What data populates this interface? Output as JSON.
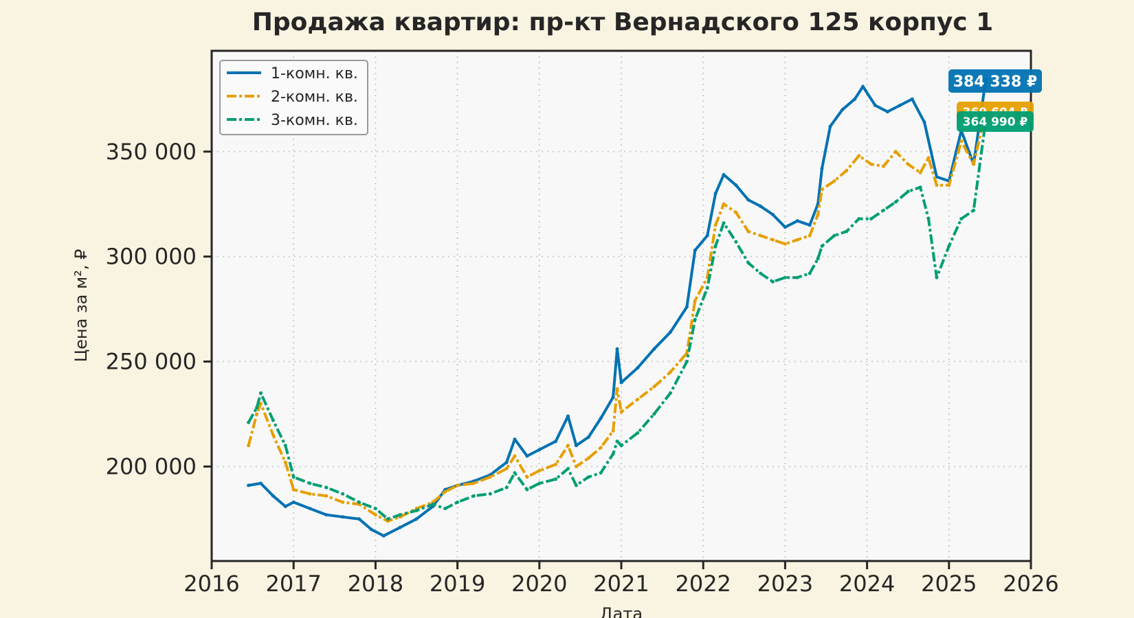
{
  "colors": {
    "page_background": "#f9f3e1",
    "plot_background": "#f8f8f8",
    "one_room": "#0072b2",
    "two_room": "#e69f00",
    "three_room": "#009e73",
    "grid": "#cccccc",
    "axis": "#262626"
  },
  "chart_data": {
    "type": "line",
    "title": "Продажа квартир: пр-кт Вернадского 125 корпус 1",
    "xlabel": "Дата",
    "ylabel": "Цена за м², ₽",
    "xlim": [
      2016,
      2026
    ],
    "ylim": [
      155000,
      398000
    ],
    "x_ticks": [
      2016,
      2017,
      2018,
      2019,
      2020,
      2021,
      2022,
      2023,
      2024,
      2025,
      2026
    ],
    "x_tick_labels": [
      "2016",
      "2017",
      "2018",
      "2019",
      "2020",
      "2021",
      "2022",
      "2023",
      "2024",
      "2025",
      "2026"
    ],
    "y_ticks": [
      200000,
      250000,
      300000,
      350000
    ],
    "y_tick_labels": [
      "200 000",
      "250 000",
      "300 000",
      "350 000"
    ],
    "grid": true,
    "legend_position": "top-left",
    "series": [
      {
        "name": "1-комн. кв.",
        "color": "#0072b2",
        "linestyle": "solid",
        "last_value_label": "384 338 ₽",
        "points": [
          [
            2016.45,
            191000
          ],
          [
            2016.6,
            192000
          ],
          [
            2016.75,
            186000
          ],
          [
            2016.9,
            181000
          ],
          [
            2017.0,
            183000
          ],
          [
            2017.2,
            180000
          ],
          [
            2017.4,
            177000
          ],
          [
            2017.6,
            176000
          ],
          [
            2017.8,
            175000
          ],
          [
            2017.95,
            170000
          ],
          [
            2018.1,
            167000
          ],
          [
            2018.3,
            171000
          ],
          [
            2018.5,
            175000
          ],
          [
            2018.7,
            181000
          ],
          [
            2018.85,
            189000
          ],
          [
            2019.0,
            191000
          ],
          [
            2019.2,
            193000
          ],
          [
            2019.4,
            196000
          ],
          [
            2019.6,
            202000
          ],
          [
            2019.7,
            213000
          ],
          [
            2019.85,
            205000
          ],
          [
            2020.0,
            208000
          ],
          [
            2020.2,
            212000
          ],
          [
            2020.35,
            224000
          ],
          [
            2020.45,
            210000
          ],
          [
            2020.6,
            214000
          ],
          [
            2020.75,
            223000
          ],
          [
            2020.9,
            233000
          ],
          [
            2020.95,
            256000
          ],
          [
            2021.0,
            240000
          ],
          [
            2021.2,
            247000
          ],
          [
            2021.4,
            256000
          ],
          [
            2021.6,
            264000
          ],
          [
            2021.8,
            276000
          ],
          [
            2021.9,
            303000
          ],
          [
            2022.05,
            310000
          ],
          [
            2022.15,
            330000
          ],
          [
            2022.25,
            339000
          ],
          [
            2022.4,
            334000
          ],
          [
            2022.55,
            327000
          ],
          [
            2022.7,
            324000
          ],
          [
            2022.85,
            320000
          ],
          [
            2023.0,
            314000
          ],
          [
            2023.15,
            317000
          ],
          [
            2023.3,
            315000
          ],
          [
            2023.4,
            325000
          ],
          [
            2023.45,
            342000
          ],
          [
            2023.55,
            362000
          ],
          [
            2023.7,
            370000
          ],
          [
            2023.85,
            375000
          ],
          [
            2023.95,
            381000
          ],
          [
            2024.1,
            372000
          ],
          [
            2024.25,
            369000
          ],
          [
            2024.4,
            372000
          ],
          [
            2024.55,
            375000
          ],
          [
            2024.7,
            364000
          ],
          [
            2024.85,
            338000
          ],
          [
            2025.0,
            336000
          ],
          [
            2025.15,
            360000
          ],
          [
            2025.3,
            344000
          ],
          [
            2025.45,
            384338
          ]
        ]
      },
      {
        "name": "2-комн. кв.",
        "color": "#e69f00",
        "linestyle": "dashdot",
        "last_value_label": "369 604 ₽",
        "points": [
          [
            2016.45,
            210000
          ],
          [
            2016.55,
            225000
          ],
          [
            2016.6,
            230000
          ],
          [
            2016.75,
            215000
          ],
          [
            2016.9,
            202000
          ],
          [
            2017.0,
            189000
          ],
          [
            2017.2,
            187000
          ],
          [
            2017.4,
            186000
          ],
          [
            2017.6,
            183000
          ],
          [
            2017.8,
            182000
          ],
          [
            2018.0,
            177000
          ],
          [
            2018.15,
            174000
          ],
          [
            2018.3,
            176000
          ],
          [
            2018.5,
            180000
          ],
          [
            2018.7,
            183000
          ],
          [
            2018.85,
            188000
          ],
          [
            2019.0,
            191000
          ],
          [
            2019.2,
            192000
          ],
          [
            2019.4,
            195000
          ],
          [
            2019.6,
            199000
          ],
          [
            2019.7,
            205000
          ],
          [
            2019.85,
            195000
          ],
          [
            2020.0,
            198000
          ],
          [
            2020.2,
            201000
          ],
          [
            2020.35,
            210000
          ],
          [
            2020.45,
            200000
          ],
          [
            2020.6,
            204000
          ],
          [
            2020.75,
            209000
          ],
          [
            2020.9,
            217000
          ],
          [
            2020.95,
            237000
          ],
          [
            2021.0,
            226000
          ],
          [
            2021.2,
            232000
          ],
          [
            2021.4,
            238000
          ],
          [
            2021.6,
            245000
          ],
          [
            2021.8,
            254000
          ],
          [
            2021.9,
            279000
          ],
          [
            2022.05,
            290000
          ],
          [
            2022.15,
            315000
          ],
          [
            2022.25,
            325000
          ],
          [
            2022.4,
            321000
          ],
          [
            2022.55,
            312000
          ],
          [
            2022.7,
            310000
          ],
          [
            2022.85,
            308000
          ],
          [
            2023.0,
            306000
          ],
          [
            2023.15,
            308000
          ],
          [
            2023.3,
            310000
          ],
          [
            2023.4,
            320000
          ],
          [
            2023.45,
            332000
          ],
          [
            2023.6,
            336000
          ],
          [
            2023.75,
            341000
          ],
          [
            2023.9,
            348000
          ],
          [
            2024.05,
            344000
          ],
          [
            2024.2,
            343000
          ],
          [
            2024.35,
            350000
          ],
          [
            2024.5,
            344000
          ],
          [
            2024.65,
            340000
          ],
          [
            2024.75,
            347000
          ],
          [
            2024.85,
            334000
          ],
          [
            2025.0,
            334000
          ],
          [
            2025.15,
            355000
          ],
          [
            2025.3,
            344000
          ],
          [
            2025.45,
            369604
          ]
        ]
      },
      {
        "name": "3-комн. кв.",
        "color": "#009e73",
        "linestyle": "dashdot",
        "last_value_label": "364 990 ₽",
        "points": [
          [
            2016.45,
            221000
          ],
          [
            2016.55,
            228000
          ],
          [
            2016.6,
            235000
          ],
          [
            2016.75,
            222000
          ],
          [
            2016.9,
            210000
          ],
          [
            2017.0,
            195000
          ],
          [
            2017.2,
            192000
          ],
          [
            2017.4,
            190000
          ],
          [
            2017.6,
            187000
          ],
          [
            2017.8,
            183000
          ],
          [
            2018.0,
            180000
          ],
          [
            2018.15,
            175000
          ],
          [
            2018.3,
            177000
          ],
          [
            2018.5,
            179000
          ],
          [
            2018.7,
            182000
          ],
          [
            2018.85,
            180000
          ],
          [
            2019.0,
            183000
          ],
          [
            2019.2,
            186000
          ],
          [
            2019.4,
            187000
          ],
          [
            2019.6,
            190000
          ],
          [
            2019.7,
            197000
          ],
          [
            2019.85,
            189000
          ],
          [
            2020.0,
            192000
          ],
          [
            2020.2,
            194000
          ],
          [
            2020.35,
            199000
          ],
          [
            2020.45,
            191000
          ],
          [
            2020.6,
            195000
          ],
          [
            2020.75,
            197000
          ],
          [
            2020.9,
            206000
          ],
          [
            2020.95,
            212000
          ],
          [
            2021.0,
            210000
          ],
          [
            2021.2,
            216000
          ],
          [
            2021.4,
            225000
          ],
          [
            2021.6,
            235000
          ],
          [
            2021.8,
            250000
          ],
          [
            2021.9,
            270000
          ],
          [
            2022.05,
            285000
          ],
          [
            2022.15,
            305000
          ],
          [
            2022.25,
            316000
          ],
          [
            2022.4,
            307000
          ],
          [
            2022.55,
            297000
          ],
          [
            2022.7,
            292000
          ],
          [
            2022.85,
            288000
          ],
          [
            2023.0,
            290000
          ],
          [
            2023.15,
            290000
          ],
          [
            2023.3,
            292000
          ],
          [
            2023.4,
            299000
          ],
          [
            2023.45,
            305000
          ],
          [
            2023.6,
            310000
          ],
          [
            2023.75,
            312000
          ],
          [
            2023.9,
            318000
          ],
          [
            2024.05,
            318000
          ],
          [
            2024.2,
            322000
          ],
          [
            2024.35,
            326000
          ],
          [
            2024.5,
            331000
          ],
          [
            2024.65,
            333000
          ],
          [
            2024.75,
            318000
          ],
          [
            2024.85,
            290000
          ],
          [
            2025.0,
            305000
          ],
          [
            2025.15,
            318000
          ],
          [
            2025.3,
            322000
          ],
          [
            2025.45,
            364990
          ]
        ]
      }
    ]
  }
}
